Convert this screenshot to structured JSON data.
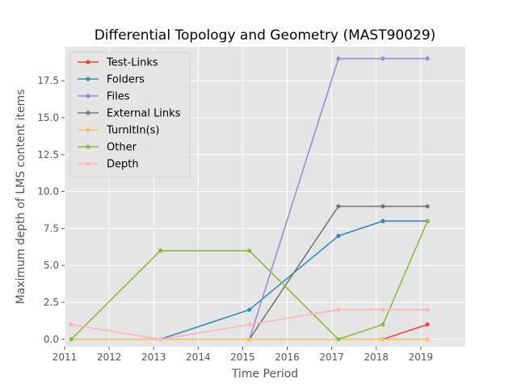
{
  "chart_data": {
    "type": "line",
    "title": "Differential Topology and Geometry (MAST90029)",
    "xlabel": "Time Period",
    "ylabel": "Maximum depth of LMS content items",
    "xlim": [
      2011,
      2020
    ],
    "ylim": [
      -0.5,
      19.8
    ],
    "xticks": [
      "2011",
      "2012",
      "2013",
      "2014",
      "2015",
      "2016",
      "2017",
      "2018",
      "2019"
    ],
    "yticks": [
      "0.0",
      "2.5",
      "5.0",
      "7.5",
      "10.0",
      "12.5",
      "15.0",
      "17.5"
    ],
    "legend_position": "top-left",
    "grid": true,
    "series": [
      {
        "name": "Test-Links",
        "color": "#E24A33",
        "points": [
          [
            2018.15,
            0
          ],
          [
            2019.15,
            1
          ]
        ]
      },
      {
        "name": "Folders",
        "color": "#348ABD",
        "points": [
          [
            2013.15,
            0
          ],
          [
            2015.15,
            2
          ],
          [
            2017.15,
            7
          ],
          [
            2018.15,
            8
          ],
          [
            2019.15,
            8
          ]
        ]
      },
      {
        "name": "Files",
        "color": "#988ED5",
        "points": [
          [
            2015.15,
            0
          ],
          [
            2017.15,
            19
          ],
          [
            2018.15,
            19
          ],
          [
            2019.15,
            19
          ]
        ]
      },
      {
        "name": "External Links",
        "color": "#777777",
        "points": [
          [
            2015.15,
            0
          ],
          [
            2017.15,
            9
          ],
          [
            2018.15,
            9
          ],
          [
            2019.15,
            9
          ]
        ]
      },
      {
        "name": "TurnItIn(s)",
        "color": "#FBC15E",
        "points": [
          [
            2011.15,
            0
          ],
          [
            2013.15,
            0
          ],
          [
            2015.15,
            0
          ],
          [
            2017.15,
            0
          ],
          [
            2018.15,
            0
          ],
          [
            2019.15,
            0
          ]
        ]
      },
      {
        "name": "Other",
        "color": "#8EBA42",
        "points": [
          [
            2011.15,
            0
          ],
          [
            2013.15,
            6
          ],
          [
            2015.15,
            6
          ],
          [
            2017.15,
            0
          ],
          [
            2018.15,
            1
          ],
          [
            2019.15,
            8
          ]
        ]
      },
      {
        "name": "Depth",
        "color": "#FFB5B8",
        "points": [
          [
            2011.15,
            1
          ],
          [
            2013.15,
            0
          ],
          [
            2015.15,
            1
          ],
          [
            2017.15,
            2
          ],
          [
            2018.15,
            2
          ],
          [
            2019.15,
            2
          ]
        ]
      }
    ]
  }
}
